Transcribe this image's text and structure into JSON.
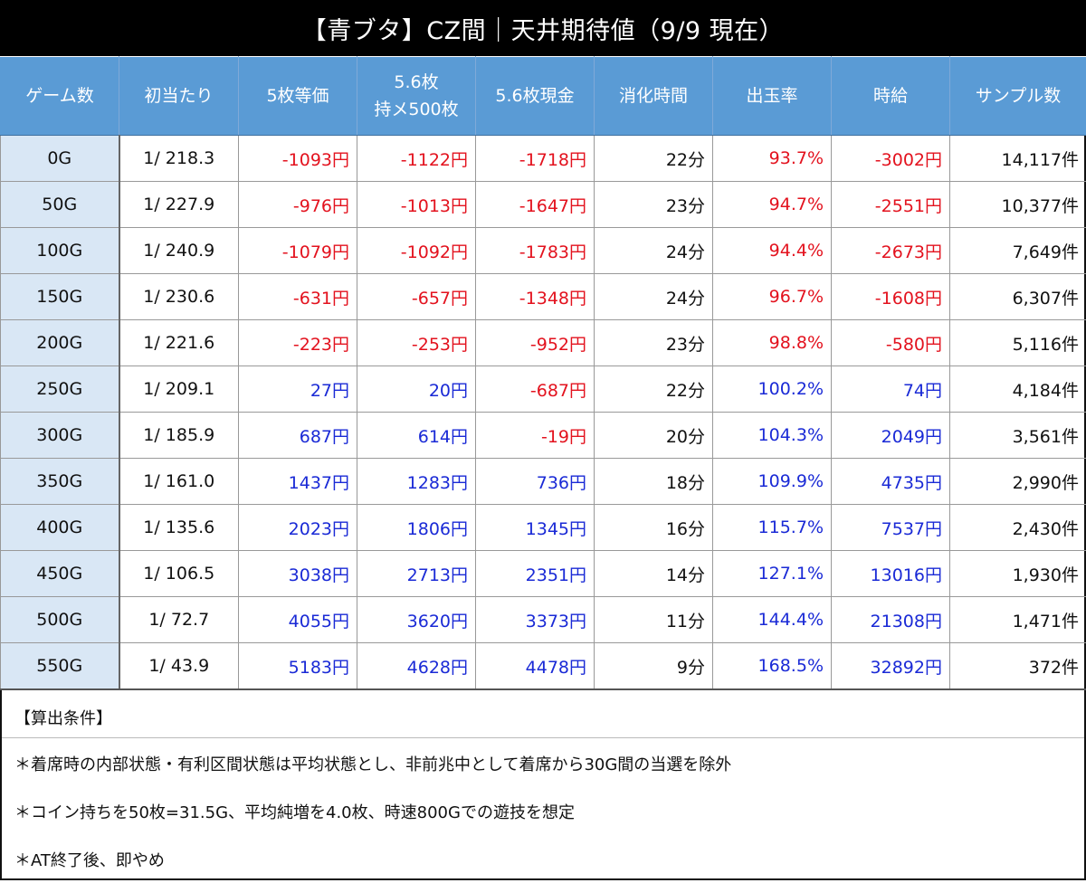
{
  "title": "【青ブタ】CZ間｜天井期待値（9/9 現在）",
  "columns": [
    {
      "lines": [
        "ゲーム数"
      ]
    },
    {
      "lines": [
        "初当たり"
      ]
    },
    {
      "lines": [
        "5枚等価"
      ]
    },
    {
      "lines": [
        "5.6枚",
        "持メ500枚"
      ]
    },
    {
      "lines": [
        "5.6枚現金"
      ]
    },
    {
      "lines": [
        "消化時間"
      ]
    },
    {
      "lines": [
        "出玉率"
      ]
    },
    {
      "lines": [
        "時給"
      ]
    },
    {
      "lines": [
        "サンプル数"
      ]
    }
  ],
  "rows": [
    {
      "game": "0G",
      "hit": "1/ 218.3",
      "eq5": "-1093円",
      "hold": "-1122円",
      "cash": "-1718円",
      "time": "22分",
      "rate": "93.7%",
      "wage": "-3002円",
      "samples": "14,117件"
    },
    {
      "game": "50G",
      "hit": "1/ 227.9",
      "eq5": "-976円",
      "hold": "-1013円",
      "cash": "-1647円",
      "time": "23分",
      "rate": "94.7%",
      "wage": "-2551円",
      "samples": "10,377件"
    },
    {
      "game": "100G",
      "hit": "1/ 240.9",
      "eq5": "-1079円",
      "hold": "-1092円",
      "cash": "-1783円",
      "time": "24分",
      "rate": "94.4%",
      "wage": "-2673円",
      "samples": "7,649件"
    },
    {
      "game": "150G",
      "hit": "1/ 230.6",
      "eq5": "-631円",
      "hold": "-657円",
      "cash": "-1348円",
      "time": "24分",
      "rate": "96.7%",
      "wage": "-1608円",
      "samples": "6,307件"
    },
    {
      "game": "200G",
      "hit": "1/ 221.6",
      "eq5": "-223円",
      "hold": "-253円",
      "cash": "-952円",
      "time": "23分",
      "rate": "98.8%",
      "wage": "-580円",
      "samples": "5,116件"
    },
    {
      "game": "250G",
      "hit": "1/ 209.1",
      "eq5": "27円",
      "hold": "20円",
      "cash": "-687円",
      "time": "22分",
      "rate": "100.2%",
      "wage": "74円",
      "samples": "4,184件"
    },
    {
      "game": "300G",
      "hit": "1/ 185.9",
      "eq5": "687円",
      "hold": "614円",
      "cash": "-19円",
      "time": "20分",
      "rate": "104.3%",
      "wage": "2049円",
      "samples": "3,561件"
    },
    {
      "game": "350G",
      "hit": "1/ 161.0",
      "eq5": "1437円",
      "hold": "1283円",
      "cash": "736円",
      "time": "18分",
      "rate": "109.9%",
      "wage": "4735円",
      "samples": "2,990件"
    },
    {
      "game": "400G",
      "hit": "1/ 135.6",
      "eq5": "2023円",
      "hold": "1806円",
      "cash": "1345円",
      "time": "16分",
      "rate": "115.7%",
      "wage": "7537円",
      "samples": "2,430件"
    },
    {
      "game": "450G",
      "hit": "1/ 106.5",
      "eq5": "3038円",
      "hold": "2713円",
      "cash": "2351円",
      "time": "14分",
      "rate": "127.1%",
      "wage": "13016円",
      "samples": "1,930件"
    },
    {
      "game": "500G",
      "hit": "1/ 72.7",
      "eq5": "4055円",
      "hold": "3620円",
      "cash": "3373円",
      "time": "11分",
      "rate": "144.4%",
      "wage": "21308円",
      "samples": "1,471件"
    },
    {
      "game": "550G",
      "hit": "1/ 43.9",
      "eq5": "5183円",
      "hold": "4628円",
      "cash": "4478円",
      "time": "9分",
      "rate": "168.5%",
      "wage": "32892円",
      "samples": "372件"
    }
  ],
  "colors": {
    "negative": "#e3121e",
    "positive": "#1a2ad6",
    "header_bg": "#5a9bd5",
    "game_col_bg": "#d9e7f5",
    "title_bg": "#000000"
  },
  "conditions": {
    "heading": "【算出条件】",
    "notes": [
      "＊着席時の内部状態・有利区間状態は平均状態とし、非前兆中として着席から30G間の当選を除外",
      "＊コイン持ちを50枚=31.5G、平均純増を4.0枚、時速800Gでの遊技を想定",
      "＊AT終了後、即やめ"
    ]
  }
}
